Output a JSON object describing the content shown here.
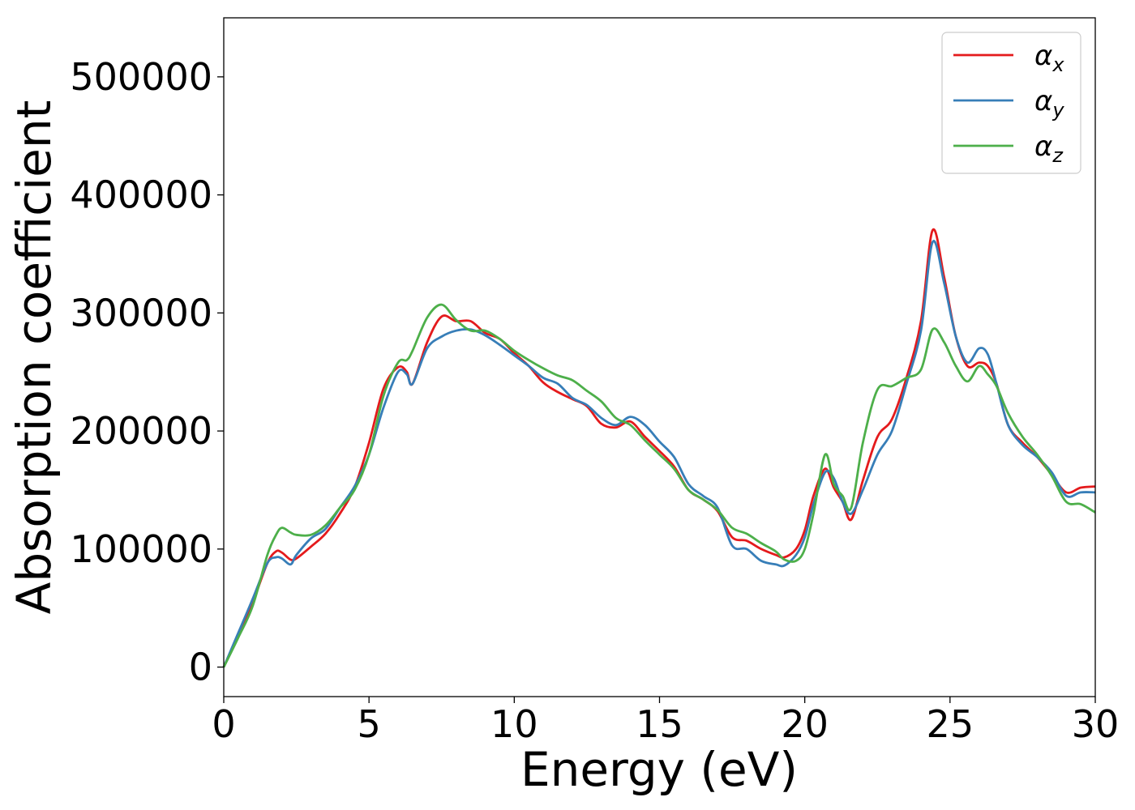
{
  "chart_data": {
    "type": "line",
    "xlabel": "Energy (eV)",
    "ylabel": "Absorption coefficient",
    "xlim": [
      0,
      30
    ],
    "ylim": [
      -25000,
      550000
    ],
    "xticks": [
      0,
      5,
      10,
      15,
      20,
      25,
      30
    ],
    "xtick_labels": [
      "0",
      "5",
      "10",
      "15",
      "20",
      "25",
      "30"
    ],
    "yticks": [
      0,
      100000,
      200000,
      300000,
      400000,
      500000
    ],
    "ytick_labels": [
      "0",
      "100000",
      "200000",
      "300000",
      "400000",
      "500000"
    ],
    "grid": false,
    "legend_position": "top-right",
    "series": [
      {
        "name": "α",
        "subscript": "x",
        "color": "#e41a1c",
        "x": [
          0,
          0.5,
          1,
          1.5,
          1.8,
          2,
          2.3,
          2.5,
          3,
          3.5,
          4,
          4.5,
          5,
          5.5,
          6,
          6.3,
          6.5,
          7,
          7.5,
          8,
          8.5,
          9,
          9.5,
          10,
          10.5,
          11,
          11.5,
          12,
          12.5,
          13,
          13.5,
          14,
          14.5,
          15,
          15.5,
          16,
          16.5,
          17,
          17.5,
          18,
          18.5,
          19,
          19.3,
          19.7,
          20,
          20.3,
          20.7,
          21,
          21.3,
          21.6,
          22,
          22.5,
          23,
          23.5,
          24,
          24.4,
          24.8,
          25.2,
          25.6,
          26,
          26.3,
          26.6,
          27,
          27.5,
          28,
          28.5,
          29,
          29.5,
          30
        ],
        "values": [
          0,
          27000,
          55000,
          88000,
          98000,
          97000,
          91000,
          92000,
          102000,
          113000,
          130000,
          152000,
          190000,
          236000,
          254000,
          250000,
          240000,
          275000,
          297000,
          293000,
          293000,
          283000,
          278000,
          266000,
          255000,
          241000,
          233000,
          227000,
          221000,
          206000,
          203000,
          208000,
          195000,
          183000,
          170000,
          150000,
          142000,
          132000,
          110000,
          107000,
          100000,
          95000,
          93000,
          100000,
          116000,
          145000,
          168000,
          152000,
          140000,
          125000,
          158000,
          195000,
          210000,
          245000,
          293000,
          370000,
          330000,
          280000,
          255000,
          258000,
          255000,
          240000,
          205000,
          190000,
          178000,
          163000,
          148000,
          152000,
          153000
        ]
      },
      {
        "name": "α",
        "subscript": "y",
        "color": "#377eb8",
        "x": [
          0,
          0.5,
          1,
          1.5,
          1.8,
          2,
          2.3,
          2.5,
          3,
          3.5,
          4,
          4.5,
          5,
          5.5,
          6,
          6.3,
          6.5,
          7,
          7.5,
          8,
          8.5,
          9,
          9.5,
          10,
          10.5,
          11,
          11.5,
          12,
          12.5,
          13,
          13.5,
          14,
          14.5,
          15,
          15.5,
          16,
          16.5,
          17,
          17.5,
          18,
          18.5,
          19,
          19.3,
          19.7,
          20,
          20.3,
          20.7,
          21,
          21.3,
          21.6,
          22,
          22.5,
          23,
          23.5,
          24,
          24.4,
          24.8,
          25.2,
          25.6,
          26,
          26.3,
          26.6,
          27,
          27.5,
          28,
          28.5,
          29,
          29.5,
          30
        ],
        "values": [
          0,
          29000,
          58000,
          88000,
          93000,
          92000,
          87000,
          95000,
          109000,
          117000,
          135000,
          153000,
          180000,
          220000,
          250000,
          248000,
          240000,
          270000,
          280000,
          285000,
          286000,
          281000,
          273000,
          264000,
          255000,
          245000,
          240000,
          228000,
          222000,
          211000,
          205000,
          212000,
          205000,
          191000,
          178000,
          155000,
          145000,
          135000,
          103000,
          100000,
          90000,
          87000,
          86000,
          95000,
          110000,
          138000,
          165000,
          160000,
          140000,
          130000,
          150000,
          180000,
          200000,
          240000,
          285000,
          360000,
          325000,
          280000,
          258000,
          270000,
          265000,
          240000,
          205000,
          188000,
          178000,
          165000,
          145000,
          148000,
          148000
        ]
      },
      {
        "name": "α",
        "subscript": "z",
        "color": "#4daf4a",
        "x": [
          0,
          0.5,
          1,
          1.5,
          1.8,
          2,
          2.3,
          2.5,
          3,
          3.5,
          4,
          4.5,
          5,
          5.5,
          6,
          6.3,
          6.5,
          7,
          7.5,
          8,
          8.5,
          9,
          9.5,
          10,
          10.5,
          11,
          11.5,
          12,
          12.5,
          13,
          13.5,
          14,
          14.5,
          15,
          15.5,
          16,
          16.5,
          17,
          17.5,
          18,
          18.5,
          19,
          19.3,
          19.7,
          20,
          20.3,
          20.7,
          21,
          21.3,
          21.6,
          22,
          22.5,
          23,
          23.5,
          24,
          24.4,
          24.8,
          25.2,
          25.6,
          26,
          26.3,
          26.6,
          27,
          27.5,
          28,
          28.5,
          29,
          29.5,
          30
        ],
        "values": [
          0,
          25000,
          52000,
          95000,
          112000,
          118000,
          114000,
          112000,
          112000,
          120000,
          135000,
          150000,
          180000,
          230000,
          258000,
          260000,
          268000,
          296000,
          307000,
          294000,
          285000,
          285000,
          278000,
          268000,
          260000,
          253000,
          247000,
          243000,
          234000,
          225000,
          211000,
          205000,
          192000,
          180000,
          168000,
          150000,
          142000,
          133000,
          118000,
          113000,
          105000,
          98000,
          91000,
          90000,
          100000,
          130000,
          180000,
          155000,
          145000,
          135000,
          190000,
          235000,
          238000,
          245000,
          252000,
          286000,
          275000,
          255000,
          242000,
          255000,
          248000,
          238000,
          215000,
          195000,
          180000,
          162000,
          140000,
          138000,
          131000
        ]
      }
    ]
  }
}
